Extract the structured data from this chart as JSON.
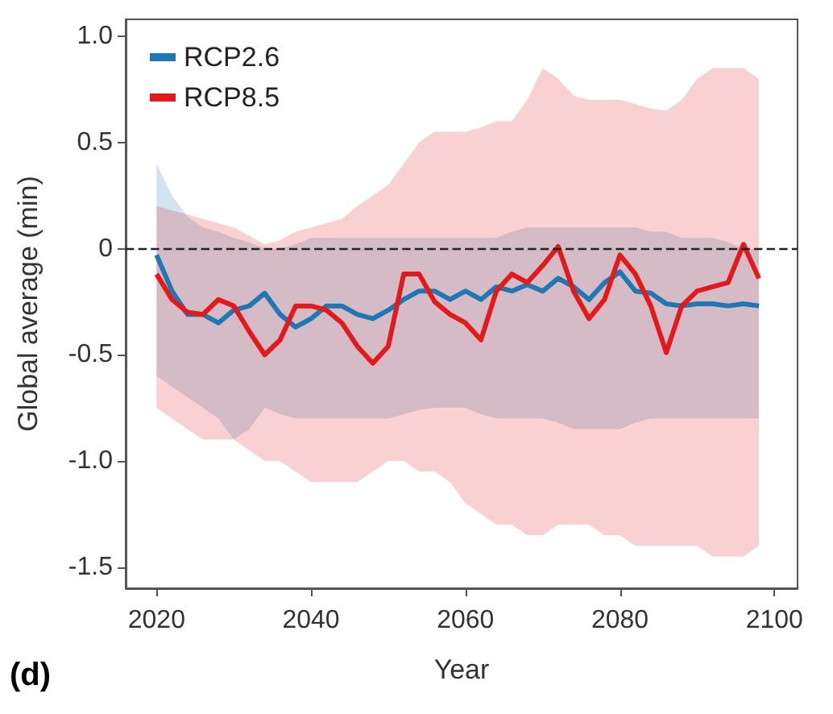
{
  "chart_data": {
    "type": "line",
    "xlabel": "Year",
    "ylabel": "Global average (min)",
    "annotations": [
      "(d)"
    ],
    "xlim": [
      2016,
      2103
    ],
    "xticks": [
      2020,
      2040,
      2060,
      2080,
      2100
    ],
    "ylim": [
      -1.6,
      1.08
    ],
    "yticks": [
      -1.5,
      {
        "value": -1.0,
        "label": "-1.0"
      },
      -0.5,
      0,
      0.5,
      {
        "value": 1.0,
        "label": "1.0"
      }
    ],
    "grid": false,
    "legend": "top left",
    "marker": "none",
    "line_style": "solid",
    "ref_lines": [
      {
        "axis": "y",
        "value": 0,
        "color": "#222222",
        "line_style": "dashed"
      }
    ],
    "series": [
      {
        "name": "RCP2.6",
        "color": "#1f78b4",
        "x": [
          2020,
          2022,
          2024,
          2026,
          2028,
          2030,
          2032,
          2034,
          2036,
          2038,
          2040,
          2042,
          2044,
          2046,
          2048,
          2050,
          2052,
          2054,
          2056,
          2058,
          2060,
          2062,
          2064,
          2066,
          2068,
          2070,
          2072,
          2074,
          2076,
          2078,
          2080,
          2082,
          2084,
          2086,
          2088,
          2090,
          2092,
          2094,
          2096,
          2098
        ],
        "values": [
          -0.03,
          -0.2,
          -0.31,
          -0.31,
          -0.35,
          -0.29,
          -0.27,
          -0.21,
          -0.31,
          -0.37,
          -0.33,
          -0.27,
          -0.27,
          -0.31,
          -0.33,
          -0.29,
          -0.24,
          -0.2,
          -0.2,
          -0.24,
          -0.2,
          -0.24,
          -0.18,
          -0.2,
          -0.17,
          -0.2,
          -0.14,
          -0.18,
          -0.24,
          -0.16,
          -0.11,
          -0.2,
          -0.21,
          -0.26,
          -0.27,
          -0.26,
          -0.26,
          -0.27,
          -0.26,
          -0.27
        ],
        "upper": [
          0.4,
          0.25,
          0.15,
          0.1,
          0.08,
          0.05,
          0.03,
          0.0,
          0.0,
          0.02,
          0.05,
          0.05,
          0.05,
          0.05,
          0.05,
          0.05,
          0.05,
          0.05,
          0.05,
          0.05,
          0.05,
          0.05,
          0.05,
          0.08,
          0.1,
          0.1,
          0.1,
          0.1,
          0.1,
          0.1,
          0.1,
          0.1,
          0.08,
          0.08,
          0.05,
          0.05,
          0.05,
          0.03,
          0.0,
          0.0
        ],
        "lower": [
          -0.6,
          -0.65,
          -0.7,
          -0.75,
          -0.8,
          -0.9,
          -0.85,
          -0.75,
          -0.78,
          -0.8,
          -0.8,
          -0.8,
          -0.8,
          -0.8,
          -0.8,
          -0.8,
          -0.78,
          -0.76,
          -0.75,
          -0.75,
          -0.75,
          -0.78,
          -0.8,
          -0.8,
          -0.8,
          -0.8,
          -0.82,
          -0.85,
          -0.85,
          -0.85,
          -0.85,
          -0.82,
          -0.8,
          -0.8,
          -0.8,
          -0.8,
          -0.8,
          -0.8,
          -0.8,
          -0.8
        ]
      },
      {
        "name": "RCP8.5",
        "color": "#e31a1c",
        "x": [
          2020,
          2022,
          2024,
          2026,
          2028,
          2030,
          2032,
          2034,
          2036,
          2038,
          2040,
          2042,
          2044,
          2046,
          2048,
          2050,
          2052,
          2054,
          2056,
          2058,
          2060,
          2062,
          2064,
          2066,
          2068,
          2070,
          2072,
          2074,
          2076,
          2078,
          2080,
          2082,
          2084,
          2086,
          2088,
          2090,
          2092,
          2094,
          2096,
          2098
        ],
        "values": [
          -0.12,
          -0.24,
          -0.3,
          -0.31,
          -0.24,
          -0.27,
          -0.39,
          -0.5,
          -0.43,
          -0.27,
          -0.27,
          -0.29,
          -0.35,
          -0.46,
          -0.54,
          -0.46,
          -0.12,
          -0.12,
          -0.25,
          -0.31,
          -0.35,
          -0.43,
          -0.2,
          -0.12,
          -0.16,
          -0.08,
          0.01,
          -0.2,
          -0.33,
          -0.24,
          -0.03,
          -0.12,
          -0.27,
          -0.49,
          -0.27,
          -0.2,
          -0.18,
          -0.16,
          0.02,
          -0.14
        ],
        "upper": [
          0.2,
          0.18,
          0.16,
          0.14,
          0.12,
          0.1,
          0.06,
          0.02,
          0.04,
          0.08,
          0.1,
          0.12,
          0.14,
          0.2,
          0.25,
          0.3,
          0.4,
          0.5,
          0.55,
          0.55,
          0.55,
          0.57,
          0.6,
          0.6,
          0.7,
          0.85,
          0.8,
          0.72,
          0.7,
          0.7,
          0.7,
          0.68,
          0.66,
          0.65,
          0.7,
          0.8,
          0.85,
          0.85,
          0.85,
          0.8
        ],
        "lower": [
          -0.75,
          -0.8,
          -0.85,
          -0.9,
          -0.9,
          -0.9,
          -0.95,
          -1.0,
          -1.0,
          -1.05,
          -1.1,
          -1.1,
          -1.1,
          -1.1,
          -1.05,
          -1.0,
          -1.0,
          -1.05,
          -1.05,
          -1.1,
          -1.2,
          -1.25,
          -1.3,
          -1.3,
          -1.35,
          -1.35,
          -1.3,
          -1.3,
          -1.3,
          -1.35,
          -1.35,
          -1.4,
          -1.4,
          -1.4,
          -1.4,
          -1.4,
          -1.45,
          -1.45,
          -1.45,
          -1.4
        ]
      }
    ]
  }
}
